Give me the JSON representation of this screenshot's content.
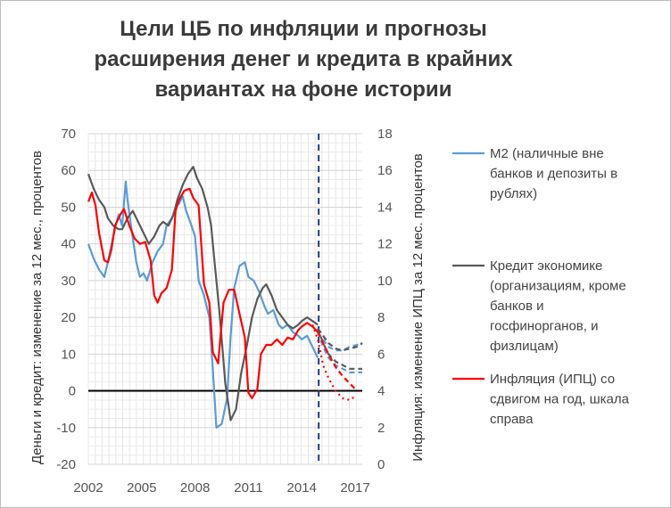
{
  "chart_data": {
    "type": "line",
    "title": "Цели  ЦБ по инфляции и прогнозы\nрасширения денег и кредита в крайних\nвариантах на фоне истории",
    "ylabel_left": "Деньги и кредит: изменение за 12 мес., процентов",
    "ylabel_right": "Инфляция: изменение ИПЦ за 12 мес. процентов",
    "ylim_left": [
      -20,
      70
    ],
    "ylim_right": [
      0,
      18
    ],
    "yticks_left": [
      "-20",
      "-10",
      "0",
      "10",
      "20",
      "30",
      "40",
      "50",
      "60",
      "70"
    ],
    "yticks_right": [
      "0",
      "2",
      "4",
      "6",
      "8",
      "10",
      "12",
      "14",
      "16",
      "18"
    ],
    "xlim": [
      2002,
      2017.4
    ],
    "xticks": [
      "2002",
      "2005",
      "2008",
      "2011",
      "2014",
      "2017"
    ],
    "grid": true,
    "legend_position": "right",
    "forecast_start": 2014.95,
    "series": [
      {
        "name": "M2 (наличные вне банков и депозиты в рублях)",
        "color": "#5b9bd5",
        "axis": "left",
        "x": [
          2002.0,
          2002.3,
          2002.6,
          2002.9,
          2003.1,
          2003.4,
          2003.7,
          2003.9,
          2004.1,
          2004.2,
          2004.4,
          2004.7,
          2004.9,
          2005.1,
          2005.3,
          2005.6,
          2005.9,
          2006.2,
          2006.4,
          2006.7,
          2006.9,
          2007.1,
          2007.3,
          2007.5,
          2007.8,
          2008.0,
          2008.2,
          2008.5,
          2008.8,
          2009.0,
          2009.2,
          2009.5,
          2009.8,
          2010.0,
          2010.2,
          2010.5,
          2010.8,
          2011.0,
          2011.3,
          2011.6,
          2011.9,
          2012.1,
          2012.4,
          2012.7,
          2012.9,
          2013.2,
          2013.5,
          2013.8,
          2014.0,
          2014.3,
          2014.6,
          2014.9
        ],
        "values": [
          40,
          36,
          33,
          31,
          35,
          42,
          48,
          45,
          57,
          52,
          45,
          35,
          31,
          32,
          30,
          35,
          38,
          40,
          45,
          47,
          50,
          51,
          53,
          49,
          45,
          42,
          30,
          26,
          20,
          6,
          -10,
          -9,
          -2,
          15,
          28,
          34,
          35,
          31,
          30,
          27,
          23,
          21,
          22,
          18,
          17,
          18,
          16,
          15,
          14,
          15,
          12,
          9
        ]
      },
      {
        "name": "Кредит экономике (организациям, кроме банков и госфинорганов, и физлицам)",
        "color": "#595959",
        "axis": "left",
        "x": [
          2002.0,
          2002.3,
          2002.6,
          2002.9,
          2003.1,
          2003.4,
          2003.7,
          2003.9,
          2004.2,
          2004.5,
          2004.8,
          2005.1,
          2005.4,
          2005.7,
          2006.0,
          2006.2,
          2006.5,
          2006.8,
          2007.0,
          2007.3,
          2007.6,
          2007.9,
          2008.1,
          2008.4,
          2008.7,
          2008.9,
          2009.1,
          2009.4,
          2009.7,
          2010.0,
          2010.3,
          2010.6,
          2010.9,
          2011.2,
          2011.5,
          2011.8,
          2012.0,
          2012.3,
          2012.6,
          2012.9,
          2013.2,
          2013.5,
          2013.8,
          2014.0,
          2014.3,
          2014.6,
          2014.9
        ],
        "values": [
          59,
          55,
          52,
          50,
          47,
          45,
          44,
          44,
          47,
          49,
          46,
          43,
          40,
          42,
          45,
          46,
          45,
          48,
          52,
          56,
          59,
          61,
          58,
          55,
          50,
          45,
          35,
          20,
          2,
          -8,
          -5,
          5,
          12,
          20,
          25,
          28,
          29,
          26,
          22,
          20,
          18,
          17,
          18,
          19,
          20,
          19,
          18
        ]
      },
      {
        "name": "Инфляция (ИПЦ) со сдвигом на год, шкала справа",
        "color": "#ff0000",
        "axis": "right",
        "x": [
          2002.0,
          2002.2,
          2002.4,
          2002.6,
          2002.9,
          2003.1,
          2003.3,
          2003.5,
          2003.8,
          2004.0,
          2004.3,
          2004.6,
          2004.9,
          2005.2,
          2005.5,
          2005.7,
          2005.9,
          2006.1,
          2006.4,
          2006.7,
          2006.9,
          2007.1,
          2007.4,
          2007.7,
          2007.9,
          2008.2,
          2008.5,
          2008.8,
          2009.0,
          2009.3,
          2009.6,
          2009.9,
          2010.2,
          2010.5,
          2010.8,
          2011.0,
          2011.2,
          2011.5,
          2011.7,
          2012.0,
          2012.3,
          2012.6,
          2012.9,
          2013.2,
          2013.5,
          2013.8,
          2014.0,
          2014.3,
          2014.6,
          2014.9
        ],
        "values": [
          14.3,
          14.8,
          14.1,
          12.6,
          11.1,
          11.0,
          11.7,
          13.0,
          13.6,
          13.9,
          13.0,
          12.3,
          12.0,
          12.1,
          11.1,
          9.2,
          8.8,
          9.3,
          9.6,
          10.6,
          13.8,
          14.4,
          14.9,
          15.0,
          14.5,
          14.1,
          9.8,
          8.8,
          6.1,
          5.5,
          8.8,
          9.5,
          9.5,
          8.2,
          6.9,
          3.9,
          3.6,
          4.1,
          6.0,
          6.5,
          6.5,
          6.8,
          6.5,
          6.9,
          6.8,
          7.3,
          7.5,
          7.7,
          7.5,
          7.2
        ]
      }
    ],
    "forecasts": [
      {
        "series": "M2 (наличные вне банков и депозиты в рублях)",
        "color": "#5b9bd5",
        "axis": "left",
        "x": [
          2014.9,
          2015.2,
          2015.5,
          2015.9,
          2016.3,
          2016.7,
          2017.1,
          2017.4
        ],
        "values": [
          16,
          14,
          12,
          11,
          11,
          12,
          12.5,
          13
        ]
      },
      {
        "series": "M2 (наличные вне банков и депозиты в рублях)",
        "color": "#5b9bd5",
        "axis": "left",
        "x": [
          2014.9,
          2015.2,
          2015.5,
          2015.9,
          2016.3,
          2016.7,
          2017.1,
          2017.4
        ],
        "values": [
          16,
          12,
          9,
          7,
          6,
          5,
          5,
          5
        ]
      },
      {
        "series": "Кредит экономике (организациям, кроме банков и госфинорганов, и физлицам)",
        "color": "#595959",
        "axis": "left",
        "x": [
          2014.9,
          2015.2,
          2015.5,
          2015.9,
          2016.3,
          2016.7,
          2017.1,
          2017.4
        ],
        "values": [
          17,
          15,
          13,
          11.5,
          11,
          11.5,
          12,
          13
        ]
      },
      {
        "series": "Кредит экономике (организациям, кроме банков и госфинорганов, и физлицам)",
        "color": "#595959",
        "axis": "left",
        "x": [
          2014.9,
          2015.2,
          2015.5,
          2015.9,
          2016.3,
          2016.7,
          2017.1,
          2017.4
        ],
        "values": [
          17,
          13,
          10,
          8,
          7,
          6,
          6,
          6
        ]
      },
      {
        "series": "Инфляция (ИПЦ) со сдвигом на год, шкала справа",
        "color": "#ff0000",
        "axis": "right",
        "x": [
          2014.9,
          2015.2,
          2015.5,
          2015.9,
          2016.3,
          2016.7,
          2017.1
        ],
        "values": [
          7.2,
          6.6,
          6.0,
          5.3,
          4.8,
          4.4,
          4.0
        ]
      },
      {
        "series": "Инфляция (ИПЦ) со сдвигом на год, шкала справа",
        "color": "#ff0000",
        "axis": "right",
        "x": [
          2014.6,
          2014.9,
          2015.2,
          2015.5,
          2015.9,
          2016.3,
          2016.7,
          2017.0
        ],
        "values": [
          7.6,
          6.8,
          5.4,
          4.7,
          4.0,
          3.6,
          3.5,
          3.7
        ]
      }
    ]
  }
}
